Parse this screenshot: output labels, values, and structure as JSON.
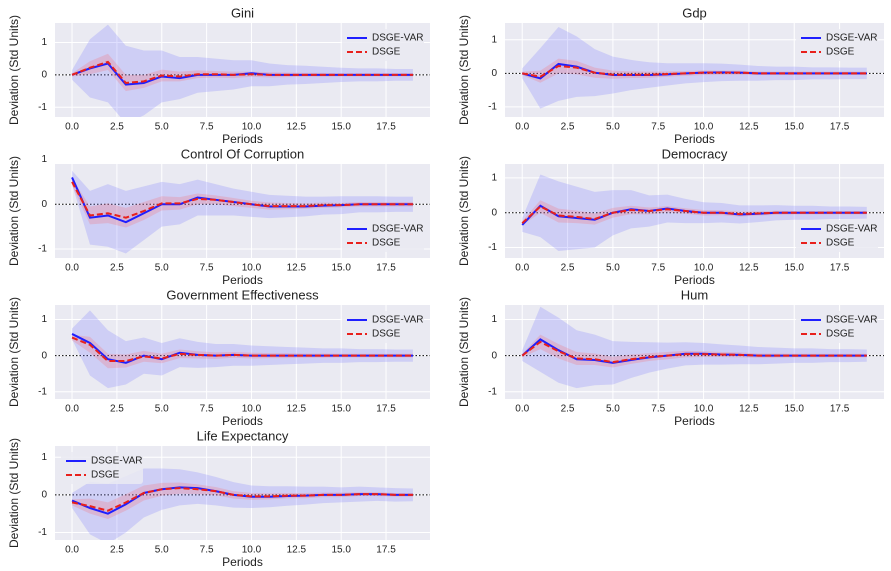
{
  "chart_data": [
    {
      "type": "line",
      "title": "Gini",
      "xlabel": "Periods",
      "ylabel": "Deviation (Std Units)",
      "legend": "upper right",
      "grid": true,
      "x": [
        0,
        1,
        2,
        3,
        4,
        5,
        6,
        7,
        8,
        9,
        10,
        11,
        12,
        13,
        14,
        15,
        16,
        17,
        18,
        19
      ],
      "xlim": [
        -0.95,
        19.95
      ],
      "ylim": [
        -1.3,
        1.6
      ],
      "xticks": [
        {
          "value": 0,
          "label": "0.0"
        },
        2.5,
        {
          "value": 5,
          "label": "5.0"
        },
        7.5,
        {
          "value": 10,
          "label": "10.0"
        },
        12.5,
        {
          "value": 15,
          "label": "15.0"
        },
        17.5
      ],
      "yticks": [
        -1,
        0,
        1
      ],
      "series": [
        {
          "name": "DSGE-VAR",
          "color": "#1f1fff",
          "band_color": "#6f6fff",
          "values": [
            0,
            0.2,
            0.35,
            -0.3,
            -0.25,
            -0.05,
            -0.1,
            0,
            0,
            0,
            0.05,
            0,
            0,
            0,
            0,
            0,
            0,
            0,
            0,
            0
          ],
          "band": [
            0.15,
            0.9,
            1.2,
            1.2,
            1.0,
            0.8,
            0.65,
            0.55,
            0.5,
            0.45,
            0.4,
            0.35,
            0.3,
            0.28,
            0.25,
            0.22,
            0.2,
            0.2,
            0.18,
            0.18
          ]
        },
        {
          "name": "DSGE",
          "color": "#e8201c",
          "band_color": "#ff6060",
          "values": [
            0,
            0.22,
            0.4,
            -0.25,
            -0.2,
            -0.02,
            -0.05,
            0.02,
            0.02,
            0,
            0.02,
            0,
            0,
            0,
            0,
            0,
            0,
            0,
            0,
            0
          ],
          "band": [
            0.05,
            0.2,
            0.25,
            0.25,
            0.2,
            0.18,
            0.15,
            0.12,
            0.1,
            0.1,
            0.08,
            0.08,
            0.07,
            0.06,
            0.06,
            0.05,
            0.05,
            0.05,
            0.05,
            0.05
          ]
        }
      ]
    },
    {
      "type": "line",
      "title": "Gdp",
      "xlabel": "Periods",
      "ylabel": "Deviation (Std Units)",
      "legend": "upper right",
      "grid": true,
      "x": [
        0,
        1,
        2,
        3,
        4,
        5,
        6,
        7,
        8,
        9,
        10,
        11,
        12,
        13,
        14,
        15,
        16,
        17,
        18,
        19
      ],
      "xlim": [
        -0.95,
        19.95
      ],
      "ylim": [
        -1.3,
        1.5
      ],
      "xticks": [
        {
          "value": 0,
          "label": "0.0"
        },
        2.5,
        {
          "value": 5,
          "label": "5.0"
        },
        7.5,
        {
          "value": 10,
          "label": "10.0"
        },
        12.5,
        {
          "value": 15,
          "label": "15.0"
        },
        17.5
      ],
      "yticks": [
        -1,
        0,
        1
      ],
      "series": [
        {
          "name": "DSGE-VAR",
          "color": "#1f1fff",
          "band_color": "#6f6fff",
          "values": [
            0,
            -0.15,
            0.28,
            0.2,
            0.02,
            -0.05,
            -0.05,
            -0.05,
            -0.03,
            0,
            0.02,
            0.03,
            0.02,
            0,
            0,
            0,
            0,
            0,
            0,
            0
          ],
          "band": [
            0.15,
            0.9,
            1.1,
            0.9,
            0.7,
            0.55,
            0.45,
            0.38,
            0.33,
            0.3,
            0.28,
            0.26,
            0.24,
            0.22,
            0.2,
            0.2,
            0.18,
            0.18,
            0.17,
            0.17
          ]
        },
        {
          "name": "DSGE",
          "color": "#e8201c",
          "band_color": "#ff6060",
          "values": [
            0,
            -0.1,
            0.22,
            0.17,
            0.02,
            -0.04,
            -0.04,
            -0.04,
            -0.02,
            0,
            0.02,
            0.02,
            0.02,
            0,
            0,
            0,
            0,
            0,
            0,
            0
          ],
          "band": [
            0.05,
            0.18,
            0.22,
            0.2,
            0.15,
            0.12,
            0.1,
            0.09,
            0.08,
            0.07,
            0.07,
            0.06,
            0.06,
            0.05,
            0.05,
            0.05,
            0.05,
            0.05,
            0.05,
            0.05
          ]
        }
      ]
    },
    {
      "type": "line",
      "title": "Control Of Corruption",
      "xlabel": "Periods",
      "ylabel": "Deviation (Std Units)",
      "legend": "lower right",
      "grid": true,
      "x": [
        0,
        1,
        2,
        3,
        4,
        5,
        6,
        7,
        8,
        9,
        10,
        11,
        12,
        13,
        14,
        15,
        16,
        17,
        18,
        19
      ],
      "xlim": [
        -0.95,
        19.95
      ],
      "ylim": [
        -1.2,
        0.9
      ],
      "xticks": [
        {
          "value": 0,
          "label": "0.0"
        },
        2.5,
        {
          "value": 5,
          "label": "5.0"
        },
        7.5,
        {
          "value": 10,
          "label": "10.0"
        },
        12.5,
        {
          "value": 15,
          "label": "15.0"
        },
        17.5
      ],
      "yticks": [
        -1,
        0,
        1
      ],
      "series": [
        {
          "name": "DSGE-VAR",
          "color": "#1f1fff",
          "band_color": "#6f6fff",
          "values": [
            0.6,
            -0.3,
            -0.25,
            -0.4,
            -0.2,
            0,
            0,
            0.15,
            0.1,
            0.05,
            0,
            -0.05,
            -0.05,
            -0.05,
            -0.03,
            -0.02,
            0,
            0,
            0,
            0
          ],
          "band": [
            0.15,
            0.6,
            0.7,
            0.7,
            0.6,
            0.5,
            0.45,
            0.4,
            0.35,
            0.3,
            0.28,
            0.26,
            0.24,
            0.22,
            0.2,
            0.2,
            0.18,
            0.18,
            0.17,
            0.17
          ]
        },
        {
          "name": "DSGE",
          "color": "#e8201c",
          "band_color": "#ff6060",
          "values": [
            0.5,
            -0.25,
            -0.2,
            -0.3,
            -0.15,
            0.02,
            0.02,
            0.12,
            0.1,
            0.05,
            0,
            -0.04,
            -0.04,
            -0.04,
            -0.02,
            -0.02,
            0,
            0,
            0,
            0
          ],
          "band": [
            0.08,
            0.2,
            0.22,
            0.22,
            0.2,
            0.16,
            0.14,
            0.12,
            0.1,
            0.09,
            0.08,
            0.08,
            0.07,
            0.06,
            0.06,
            0.05,
            0.05,
            0.05,
            0.05,
            0.05
          ]
        }
      ]
    },
    {
      "type": "line",
      "title": "Democracy",
      "xlabel": "Periods",
      "ylabel": "Deviation (Std Units)",
      "legend": "lower right",
      "grid": true,
      "x": [
        0,
        1,
        2,
        3,
        4,
        5,
        6,
        7,
        8,
        9,
        10,
        11,
        12,
        13,
        14,
        15,
        16,
        17,
        18,
        19
      ],
      "xlim": [
        -0.95,
        19.95
      ],
      "ylim": [
        -1.3,
        1.4
      ],
      "xticks": [
        {
          "value": 0,
          "label": "0.0"
        },
        2.5,
        {
          "value": 5,
          "label": "5.0"
        },
        7.5,
        {
          "value": 10,
          "label": "10.0"
        },
        12.5,
        {
          "value": 15,
          "label": "15.0"
        },
        17.5
      ],
      "yticks": [
        -1,
        0,
        1
      ],
      "series": [
        {
          "name": "DSGE-VAR",
          "color": "#1f1fff",
          "band_color": "#6f6fff",
          "values": [
            -0.35,
            0.2,
            -0.1,
            -0.15,
            -0.2,
            0,
            0.1,
            0.05,
            0.12,
            0.05,
            0,
            0,
            -0.05,
            -0.03,
            0,
            0,
            0,
            0,
            0,
            0
          ],
          "band": [
            0.2,
            0.9,
            1.0,
            0.9,
            0.8,
            0.65,
            0.55,
            0.45,
            0.4,
            0.35,
            0.3,
            0.28,
            0.26,
            0.24,
            0.22,
            0.2,
            0.2,
            0.18,
            0.18,
            0.17
          ]
        },
        {
          "name": "DSGE",
          "color": "#e8201c",
          "band_color": "#ff6060",
          "values": [
            -0.3,
            0.18,
            -0.08,
            -0.12,
            -0.18,
            0,
            0.08,
            0.05,
            0.1,
            0.05,
            0,
            0,
            -0.04,
            -0.02,
            0,
            0,
            0,
            0,
            0,
            0
          ],
          "band": [
            0.06,
            0.18,
            0.2,
            0.18,
            0.16,
            0.14,
            0.12,
            0.1,
            0.09,
            0.08,
            0.08,
            0.07,
            0.07,
            0.06,
            0.06,
            0.05,
            0.05,
            0.05,
            0.05,
            0.05
          ]
        }
      ]
    },
    {
      "type": "line",
      "title": "Government Effectiveness",
      "xlabel": "Periods",
      "ylabel": "Deviation (Std Units)",
      "legend": "upper right",
      "grid": true,
      "x": [
        0,
        1,
        2,
        3,
        4,
        5,
        6,
        7,
        8,
        9,
        10,
        11,
        12,
        13,
        14,
        15,
        16,
        17,
        18,
        19
      ],
      "xlim": [
        -0.95,
        19.95
      ],
      "ylim": [
        -1.2,
        1.4
      ],
      "xticks": [
        {
          "value": 0,
          "label": "0.0"
        },
        2.5,
        {
          "value": 5,
          "label": "5.0"
        },
        7.5,
        {
          "value": 10,
          "label": "10.0"
        },
        12.5,
        {
          "value": 15,
          "label": "15.0"
        },
        17.5
      ],
      "yticks": [
        -1,
        0,
        1
      ],
      "series": [
        {
          "name": "DSGE-VAR",
          "color": "#1f1fff",
          "band_color": "#6f6fff",
          "values": [
            0.6,
            0.35,
            -0.1,
            -0.2,
            0,
            -0.1,
            0.08,
            0.02,
            0,
            0.02,
            0,
            0,
            0,
            0,
            0,
            0,
            0,
            0,
            0,
            0
          ],
          "band": [
            0.15,
            0.9,
            0.8,
            0.6,
            0.5,
            0.45,
            0.4,
            0.36,
            0.32,
            0.3,
            0.28,
            0.26,
            0.24,
            0.22,
            0.2,
            0.2,
            0.18,
            0.18,
            0.17,
            0.17
          ]
        },
        {
          "name": "DSGE",
          "color": "#e8201c",
          "band_color": "#ff6060",
          "values": [
            0.5,
            0.3,
            -0.15,
            -0.15,
            -0.02,
            -0.08,
            0.05,
            0.02,
            0,
            0.02,
            0,
            0,
            0,
            0,
            0,
            0,
            0,
            0,
            0,
            0
          ],
          "band": [
            0.08,
            0.22,
            0.2,
            0.18,
            0.15,
            0.13,
            0.12,
            0.1,
            0.09,
            0.08,
            0.08,
            0.07,
            0.07,
            0.06,
            0.06,
            0.05,
            0.05,
            0.05,
            0.05,
            0.05
          ]
        }
      ]
    },
    {
      "type": "line",
      "title": "Hum",
      "xlabel": "Periods",
      "ylabel": "Deviation (Std Units)",
      "legend": "upper right",
      "grid": true,
      "x": [
        0,
        1,
        2,
        3,
        4,
        5,
        6,
        7,
        8,
        9,
        10,
        11,
        12,
        13,
        14,
        15,
        16,
        17,
        18,
        19
      ],
      "xlim": [
        -0.95,
        19.95
      ],
      "ylim": [
        -1.2,
        1.4
      ],
      "xticks": [
        {
          "value": 0,
          "label": "0.0"
        },
        2.5,
        {
          "value": 5,
          "label": "5.0"
        },
        7.5,
        {
          "value": 10,
          "label": "10.0"
        },
        12.5,
        {
          "value": 15,
          "label": "15.0"
        },
        17.5
      ],
      "yticks": [
        -1,
        0,
        1
      ],
      "series": [
        {
          "name": "DSGE-VAR",
          "color": "#1f1fff",
          "band_color": "#6f6fff",
          "values": [
            0,
            0.45,
            0.15,
            -0.1,
            -0.12,
            -0.2,
            -0.12,
            -0.05,
            0,
            0.05,
            0.05,
            0.03,
            0.02,
            0,
            0,
            0,
            0,
            0,
            0,
            0
          ],
          "band": [
            0.15,
            0.9,
            0.9,
            0.8,
            0.7,
            0.6,
            0.5,
            0.42,
            0.36,
            0.32,
            0.3,
            0.28,
            0.26,
            0.24,
            0.22,
            0.2,
            0.2,
            0.18,
            0.18,
            0.17
          ]
        },
        {
          "name": "DSGE",
          "color": "#e8201c",
          "band_color": "#ff6060",
          "values": [
            0,
            0.38,
            0.12,
            -0.08,
            -0.1,
            -0.18,
            -0.1,
            -0.04,
            0,
            0.04,
            0.04,
            0.03,
            0.02,
            0,
            0,
            0,
            0,
            0,
            0,
            0
          ],
          "band": [
            0.05,
            0.2,
            0.2,
            0.18,
            0.16,
            0.15,
            0.13,
            0.11,
            0.1,
            0.09,
            0.08,
            0.07,
            0.07,
            0.06,
            0.06,
            0.05,
            0.05,
            0.05,
            0.05,
            0.05
          ]
        }
      ]
    },
    {
      "type": "line",
      "title": "Life Expectancy",
      "xlabel": "Periods",
      "ylabel": "Deviation (Std Units)",
      "legend": "upper left",
      "grid": true,
      "x": [
        0,
        1,
        2,
        3,
        4,
        5,
        6,
        7,
        8,
        9,
        10,
        11,
        12,
        13,
        14,
        15,
        16,
        17,
        18,
        19
      ],
      "xlim": [
        -0.95,
        19.95
      ],
      "ylim": [
        -1.2,
        1.3
      ],
      "xticks": [
        {
          "value": 0,
          "label": "0.0"
        },
        2.5,
        {
          "value": 5,
          "label": "5.0"
        },
        7.5,
        {
          "value": 10,
          "label": "10.0"
        },
        12.5,
        {
          "value": 15,
          "label": "15.0"
        },
        17.5
      ],
      "yticks": [
        -1,
        0,
        1
      ],
      "series": [
        {
          "name": "DSGE-VAR",
          "color": "#1f1fff",
          "band_color": "#6f6fff",
          "values": [
            -0.15,
            -0.35,
            -0.5,
            -0.25,
            0.05,
            0.15,
            0.2,
            0.18,
            0.1,
            0,
            -0.05,
            -0.05,
            -0.03,
            -0.02,
            0,
            0,
            0.02,
            0.02,
            0,
            0
          ],
          "band": [
            0.2,
            0.7,
            0.8,
            0.75,
            0.65,
            0.55,
            0.48,
            0.42,
            0.38,
            0.34,
            0.3,
            0.28,
            0.26,
            0.24,
            0.22,
            0.2,
            0.2,
            0.18,
            0.18,
            0.17
          ]
        },
        {
          "name": "DSGE",
          "color": "#e8201c",
          "band_color": "#ff6060",
          "values": [
            -0.2,
            -0.3,
            -0.42,
            -0.2,
            0.05,
            0.15,
            0.18,
            0.15,
            0.1,
            0,
            -0.04,
            -0.04,
            -0.02,
            -0.02,
            0,
            0,
            0.02,
            0.02,
            0,
            0
          ],
          "band": [
            0.08,
            0.2,
            0.22,
            0.22,
            0.2,
            0.17,
            0.15,
            0.13,
            0.11,
            0.1,
            0.09,
            0.08,
            0.07,
            0.07,
            0.06,
            0.06,
            0.05,
            0.05,
            0.05,
            0.05
          ]
        }
      ]
    }
  ]
}
